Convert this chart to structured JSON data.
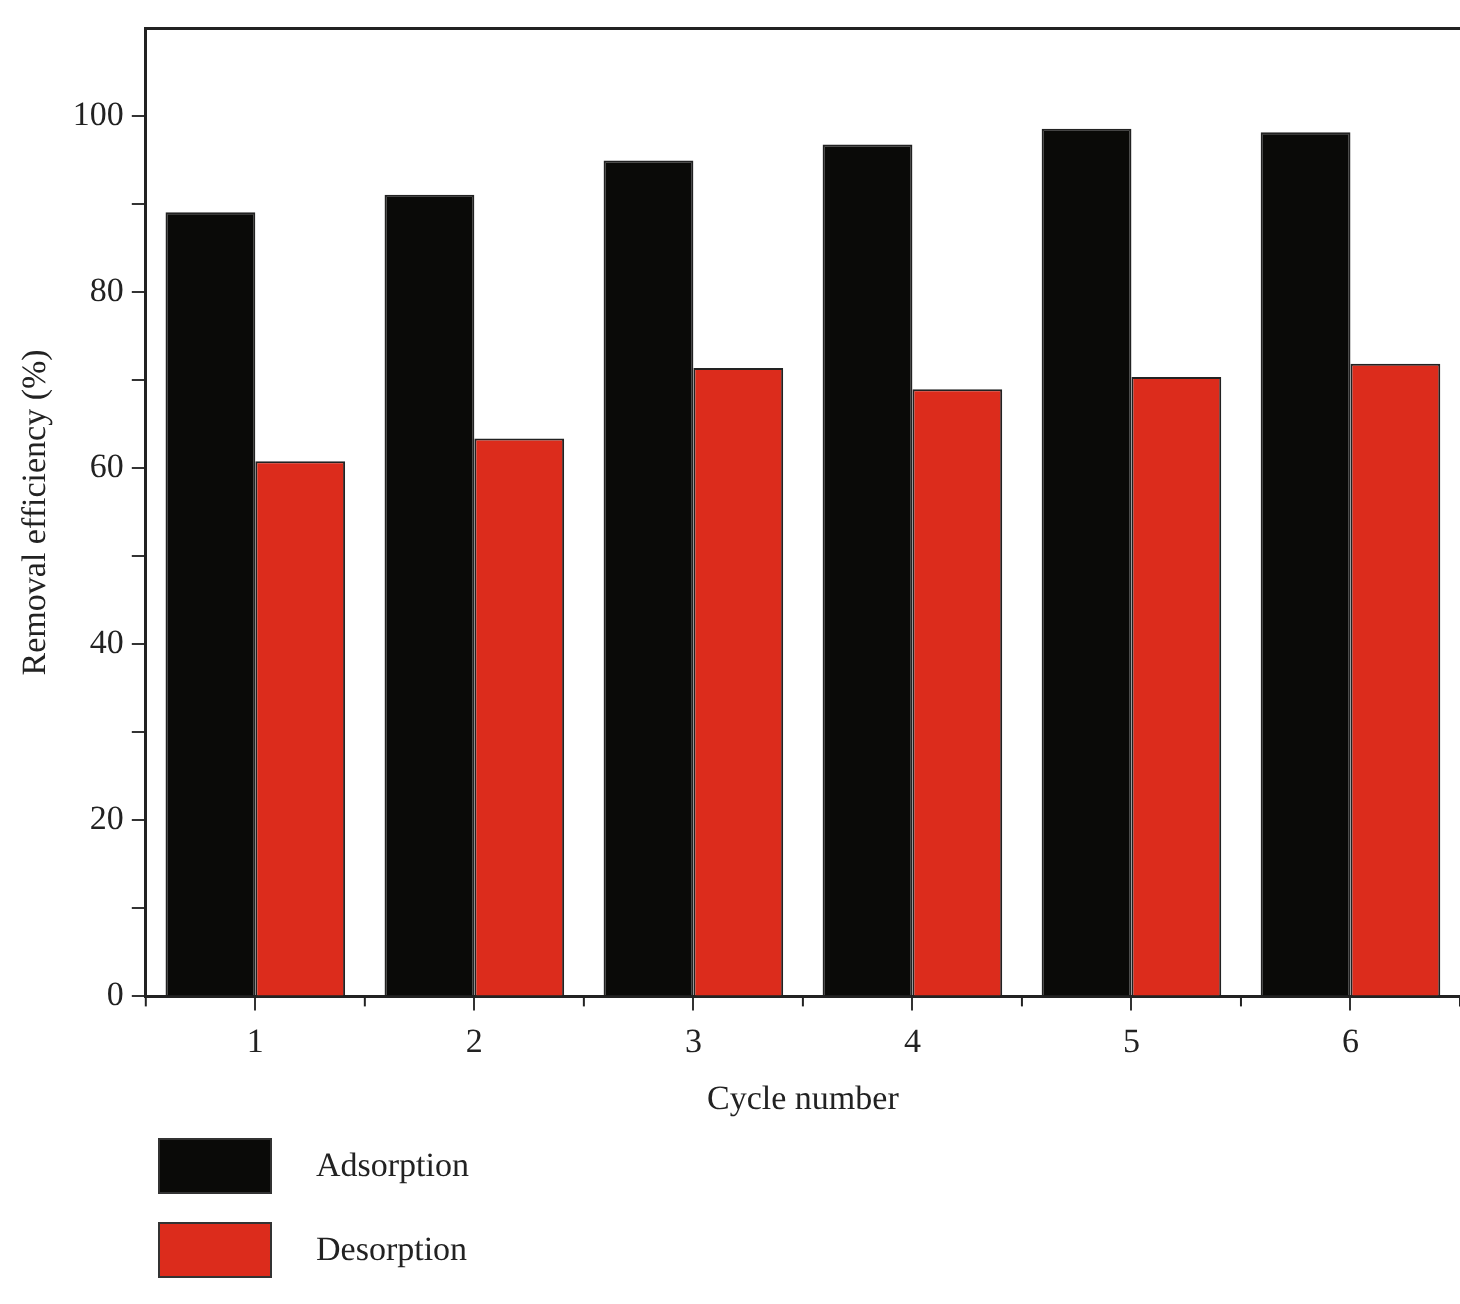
{
  "chart_data": {
    "type": "bar",
    "xlabel": "Cycle number",
    "ylabel": "Removal efficiency (%)",
    "categories": [
      "1",
      "2",
      "3",
      "4",
      "5",
      "6"
    ],
    "series": [
      {
        "name": "Adsorption",
        "color": "#0a0a08",
        "values": [
          89.1,
          91.1,
          95.0,
          96.8,
          98.6,
          98.2
        ]
      },
      {
        "name": "Desorption",
        "color": "#dc2c1c",
        "values": [
          60.8,
          63.4,
          71.4,
          69.0,
          70.4,
          71.9
        ]
      }
    ],
    "ylim": [
      0,
      110
    ],
    "yticks": [
      0,
      {
        "value": 10,
        "label": null
      },
      20,
      {
        "value": 30,
        "label": null
      },
      40,
      {
        "value": 50,
        "label": null
      },
      60,
      {
        "value": 70,
        "label": null
      },
      80,
      {
        "value": 90,
        "label": null
      },
      100
    ],
    "grid": false,
    "legend": "bottom left"
  }
}
